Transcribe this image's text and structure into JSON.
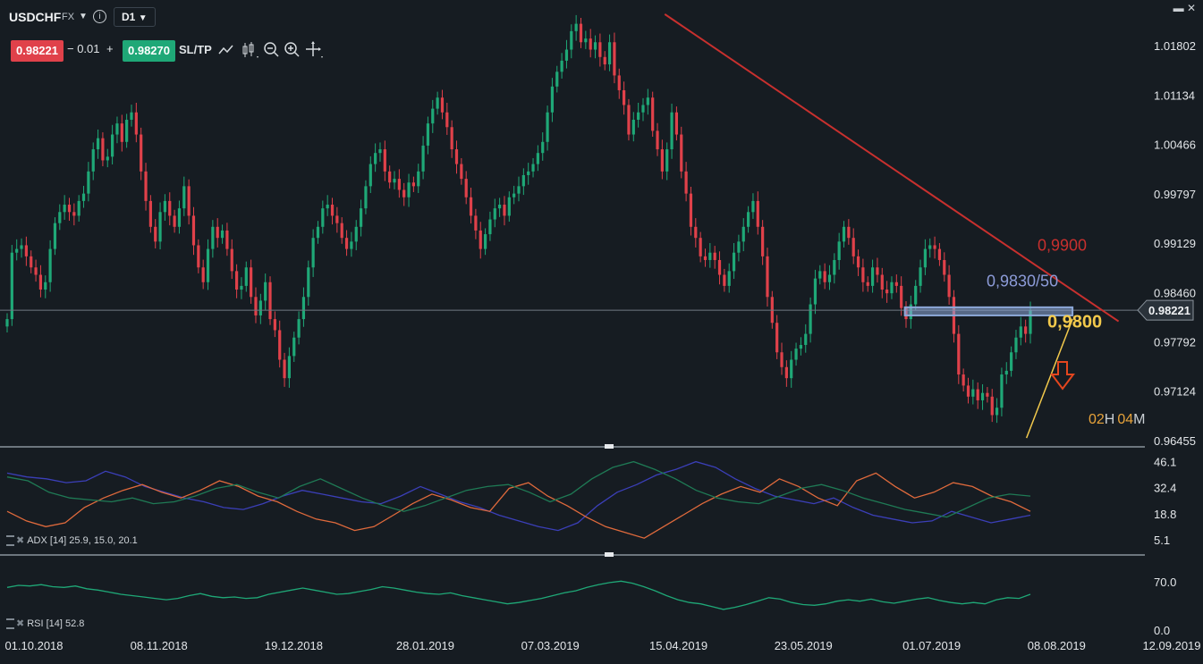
{
  "toolbar": {
    "symbol": "USDCHF",
    "market": "FX",
    "timeframe": "D1",
    "bid": "0.98221",
    "spread": "− 0.01",
    "plus": "+",
    "ask": "0.98270",
    "sltp_label": "SL/TP",
    "icons": [
      "line-chart-icon",
      "candlestick-icon",
      "zoom-out-icon",
      "zoom-in-icon",
      "crosshair-icon"
    ],
    "window_controls": "▬ ✕",
    "info_glyph": "i"
  },
  "colors": {
    "background": "#161c22",
    "bull": "#1fa877",
    "bear": "#e0414a",
    "trendline": "#c8302e",
    "support_line": "#f2c94c",
    "zone": "#8ca8d8",
    "level_9900": "#c8302e",
    "level_9830": "#8c9bd8",
    "level_9800": "#f2c94c",
    "arrow": "#e4461e",
    "adx": "#3b3fb8",
    "plus_di": "#e06a3c",
    "minus_di": "#1f7a55",
    "rsi": "#1fa877"
  },
  "chart_data": {
    "type": "candlestick",
    "instrument": "USDCHF",
    "timeframe": "D1",
    "price_axis_ticks": [
      "1.01802",
      "1.01134",
      "1.00466",
      "0.99797",
      "0.99129",
      "0.98460",
      "0.97792",
      "0.97124",
      "0.96455"
    ],
    "date_axis_ticks": [
      "01.10.2018",
      "08.11.2018",
      "19.12.2018",
      "28.01.2019",
      "07.03.2019",
      "15.04.2019",
      "23.05.2019",
      "01.07.2019",
      "08.08.2019",
      "12.09.2019"
    ],
    "ylim": [
      0.9637,
      1.0218
    ],
    "last_price": "0.98221",
    "annotations": {
      "level_9900": "0,9900",
      "level_9830": "0,9830/50",
      "level_9800": "0,9800",
      "countdown_h": "02",
      "countdown_h_unit": "H",
      "countdown_m": "04",
      "countdown_m_unit": "M"
    },
    "trendline": [
      [
        "2019-04-19",
        1.0223
      ],
      [
        "2019-09-04",
        0.9807
      ]
    ],
    "support_line": [
      [
        "2019-08-07",
        0.9649
      ],
      [
        "2019-08-21",
        0.981
      ]
    ],
    "zone": {
      "from": "2019-07-01",
      "to": "2019-08-21",
      "low": 0.9815,
      "high": 0.9826
    },
    "closes": [
      0.981,
      0.99,
      0.9905,
      0.991,
      0.9895,
      0.988,
      0.987,
      0.985,
      0.986,
      0.9905,
      0.994,
      0.9955,
      0.9965,
      0.9955,
      0.995,
      0.997,
      0.998,
      1.001,
      1.004,
      1.0055,
      1.0025,
      1.003,
      1.006,
      1.0075,
      1.005,
      1.008,
      1.009,
      1.006,
      1.001,
      0.997,
      0.9935,
      0.9915,
      0.9955,
      0.997,
      0.995,
      0.9935,
      0.996,
      0.999,
      0.995,
      0.991,
      0.988,
      0.986,
      0.9905,
      0.9935,
      0.992,
      0.993,
      0.9905,
      0.9875,
      0.985,
      0.9855,
      0.988,
      0.984,
      0.9815,
      0.9835,
      0.986,
      0.981,
      0.9795,
      0.9755,
      0.973,
      0.976,
      0.9785,
      0.981,
      0.984,
      0.988,
      0.992,
      0.9935,
      0.996,
      0.9965,
      0.995,
      0.994,
      0.992,
      0.9905,
      0.9915,
      0.9935,
      0.996,
      0.999,
      1.002,
      1.0035,
      1.004,
      1.001,
      0.9995,
      1.0,
      0.9985,
      0.9975,
      0.9995,
      0.999,
      1.001,
      1.0045,
      1.0075,
      1.0095,
      1.011,
      1.009,
      1.007,
      1.004,
      1.002,
      1.0,
      0.9975,
      0.995,
      0.993,
      0.9905,
      0.9925,
      0.9945,
      0.996,
      0.9965,
      0.995,
      0.9975,
      0.998,
      0.999,
      1.0005,
      1.001,
      1.002,
      1.0035,
      1.005,
      1.009,
      1.0125,
      1.0145,
      1.016,
      1.0175,
      1.02,
      1.021,
      1.0185,
      1.019,
      1.0175,
      1.0185,
      1.0165,
      1.0155,
      1.0185,
      1.014,
      1.012,
      1.01,
      1.006,
      1.008,
      1.009,
      1.01,
      1.011,
      1.0065,
      1.004,
      1.001,
      1.004,
      1.009,
      1.006,
      1.001,
      0.998,
      0.9935,
      0.992,
      0.9895,
      0.989,
      0.99,
      0.989,
      0.987,
      0.9855,
      0.9875,
      0.99,
      0.9915,
      0.9935,
      0.9955,
      0.997,
      0.9935,
      0.9895,
      0.984,
      0.9805,
      0.9765,
      0.9745,
      0.973,
      0.9755,
      0.977,
      0.9775,
      0.979,
      0.983,
      0.9865,
      0.9875,
      0.986,
      0.987,
      0.989,
      0.9915,
      0.9935,
      0.992,
      0.9895,
      0.988,
      0.986,
      0.9855,
      0.988,
      0.987,
      0.985,
      0.9845,
      0.986,
      0.9855,
      0.9825,
      0.981,
      0.983,
      0.9855,
      0.988,
      0.9905,
      0.991,
      0.9905,
      0.989,
      0.987,
      0.984,
      0.979,
      0.9735,
      0.972,
      0.9705,
      0.9715,
      0.97,
      0.971,
      0.9705,
      0.968,
      0.969,
      0.9735,
      0.974,
      0.9765,
      0.9785,
      0.98,
      0.979,
      0.9822
    ],
    "indicators": [
      {
        "name": "ADX [14]",
        "label": "ADX [14] 25.9, 15.0, 20.1",
        "values": [
          "25.9",
          "15.0",
          "20.1"
        ],
        "ticks": [
          "46.1",
          "32.4",
          "18.8",
          "5.1"
        ],
        "ylim": [
          0,
          50
        ],
        "series": [
          {
            "values": [
              40,
              38,
              37,
              35,
              36,
              41,
              38,
              33,
              30,
              27,
              25,
              22,
              21,
              24,
              28,
              31,
              29,
              27,
              25,
              24,
              28,
              33,
              29,
              25,
              22,
              18,
              15,
              12,
              10,
              14,
              23,
              30,
              34,
              39,
              42,
              46,
              43,
              37,
              32,
              28,
              26,
              24,
              27,
              22,
              18,
              16,
              14,
              15,
              20,
              17,
              14,
              16,
              18
            ],
            "color": "adx"
          },
          {
            "values": [
              20,
              15,
              12,
              14,
              22,
              27,
              31,
              34,
              30,
              27,
              31,
              36,
              33,
              28,
              25,
              20,
              16,
              14,
              10,
              12,
              18,
              24,
              29,
              26,
              22,
              20,
              32,
              35,
              28,
              23,
              17,
              12,
              9,
              6,
              12,
              18,
              24,
              29,
              33,
              30,
              37,
              33,
              27,
              23,
              36,
              40,
              33,
              27,
              30,
              35,
              33,
              28,
              25,
              20
            ],
            "color": "plus_di"
          },
          {
            "values": [
              38,
              36,
              30,
              27,
              26,
              25,
              27,
              24,
              25,
              28,
              32,
              34,
              30,
              27,
              33,
              37,
              32,
              27,
              23,
              20,
              23,
              27,
              31,
              33,
              34,
              30,
              25,
              29,
              37,
              43,
              46,
              42,
              37,
              31,
              27,
              25,
              24,
              28,
              32,
              34,
              31,
              27,
              24,
              21,
              19,
              17,
              22,
              27,
              29,
              28
            ],
            "color": "minus_di"
          }
        ]
      },
      {
        "name": "RSI [14]",
        "label": "RSI [14] 52.8",
        "values": [
          "52.8"
        ],
        "ticks": [
          "70.0",
          "0.0"
        ],
        "ylim": [
          0,
          100
        ],
        "series": [
          {
            "values": [
              62,
              65,
              64,
              66,
              63,
              62,
              64,
              60,
              58,
              55,
              52,
              50,
              48,
              46,
              44,
              46,
              50,
              53,
              49,
              47,
              48,
              46,
              47,
              52,
              55,
              58,
              61,
              58,
              55,
              52,
              53,
              56,
              59,
              63,
              61,
              58,
              55,
              53,
              52,
              54,
              50,
              47,
              44,
              41,
              38,
              40,
              43,
              46,
              50,
              54,
              57,
              62,
              66,
              69,
              71,
              68,
              63,
              57,
              50,
              44,
              40,
              38,
              34,
              30,
              33,
              37,
              42,
              47,
              45,
              40,
              37,
              36,
              38,
              42,
              44,
              42,
              45,
              41,
              39,
              42,
              45,
              47,
              43,
              40,
              38,
              40,
              38,
              44,
              47,
              46,
              52
            ],
            "color": "rsi"
          }
        ]
      }
    ]
  }
}
